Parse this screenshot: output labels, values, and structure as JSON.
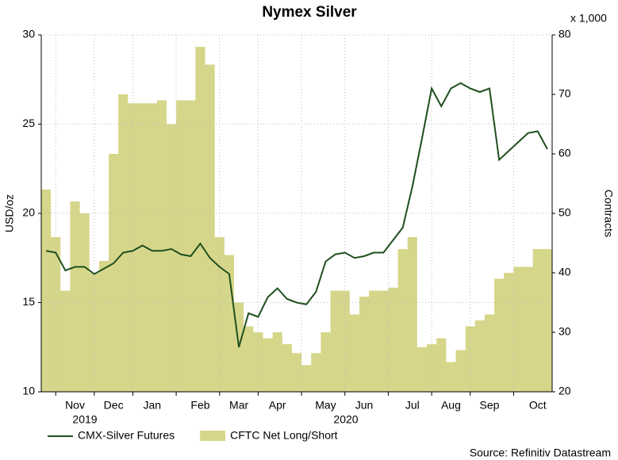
{
  "chart_data": {
    "type": "line",
    "title": "Nymex Silver",
    "y_label": "USD/oz",
    "y2_label": "Contracts",
    "y2_unit": "x 1,000",
    "source": "Source: Refinitiv Datastream",
    "year_labels": [
      "2019",
      "2020"
    ],
    "categories": [
      null,
      null,
      null,
      "Nov",
      null,
      null,
      null,
      "Dec",
      null,
      null,
      null,
      "Jan",
      null,
      null,
      null,
      null,
      "Feb",
      null,
      null,
      null,
      "Mar",
      null,
      null,
      null,
      "Apr",
      null,
      null,
      null,
      null,
      "May",
      null,
      null,
      null,
      "Jun",
      null,
      null,
      null,
      null,
      "Jul",
      null,
      null,
      null,
      "Aug",
      null,
      null,
      null,
      "Sep",
      null,
      null,
      null,
      null,
      "Oct",
      null
    ],
    "series": [
      {
        "name": "CMX-Silver Futures",
        "color": "#1f4f1f",
        "values": [
          17.9,
          17.8,
          16.8,
          17.0,
          17.0,
          16.6,
          16.9,
          17.2,
          17.8,
          17.9,
          18.2,
          17.9,
          17.9,
          18.0,
          17.7,
          17.6,
          18.3,
          17.5,
          17.0,
          16.6,
          12.5,
          14.4,
          14.2,
          15.3,
          15.8,
          15.2,
          15.0,
          14.9,
          15.6,
          17.3,
          17.7,
          17.8,
          17.5,
          17.6,
          17.8,
          17.8,
          18.5,
          19.2,
          21.5,
          24.2,
          27.0,
          26.0,
          27.0,
          27.3,
          27.0,
          26.8,
          27.0,
          23.0,
          23.5,
          24.0,
          24.5,
          24.6,
          23.6
        ]
      },
      {
        "name": "CFTC Net Long/Short",
        "color": "#d6d68a",
        "kind": "step-area",
        "axis": "y2",
        "values": [
          54,
          46,
          37,
          52,
          50,
          40,
          42,
          60,
          70,
          68.5,
          68.5,
          68.5,
          69,
          65,
          69,
          69,
          78,
          75,
          46,
          43,
          35,
          31,
          30,
          29,
          30,
          28,
          26.5,
          24.5,
          26.5,
          30,
          37,
          37,
          33,
          36,
          37,
          37,
          37.5,
          44,
          46,
          27.5,
          28,
          29,
          25,
          27,
          31,
          32,
          33,
          39,
          40,
          41,
          41,
          44,
          44
        ]
      }
    ],
    "ylim": [
      10,
      30
    ],
    "yticks": [
      10,
      15,
      20,
      25,
      30
    ],
    "y2lim": [
      20,
      80
    ],
    "y2ticks": [
      20,
      30,
      40,
      50,
      60,
      70,
      80
    ],
    "grid": true,
    "legend": "bottom-left"
  }
}
